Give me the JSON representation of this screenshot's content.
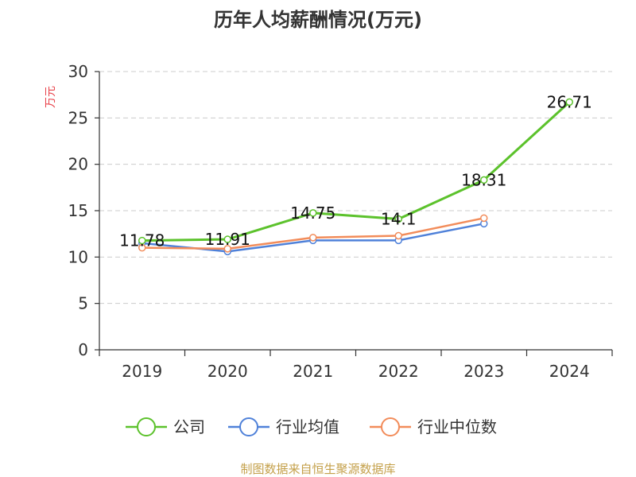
{
  "chart_data": {
    "type": "line",
    "title": "历年人均薪酬情况(万元)",
    "ylabel": "万元",
    "xlabel": "",
    "categories": [
      "2019",
      "2020",
      "2021",
      "2022",
      "2023",
      "2024"
    ],
    "ylim": [
      0,
      30
    ],
    "yticks": [
      0,
      5,
      10,
      15,
      20,
      25,
      30
    ],
    "grid": true,
    "legend_position": "bottom",
    "series": [
      {
        "name": "公司",
        "color": "#5cc22c",
        "values": [
          11.78,
          11.91,
          14.75,
          14.1,
          18.31,
          26.71
        ],
        "labels": [
          "11.78",
          "11.91",
          "14.75",
          "14.1",
          "18.31",
          "26.71"
        ]
      },
      {
        "name": "行业均值",
        "color": "#4f81d9",
        "values": [
          11.5,
          10.6,
          11.8,
          11.8,
          13.6,
          null
        ]
      },
      {
        "name": "行业中位数",
        "color": "#f28c5a",
        "values": [
          11.0,
          10.9,
          12.1,
          12.3,
          14.2,
          null
        ]
      }
    ]
  },
  "source": "制图数据来自恒生聚源数据库"
}
